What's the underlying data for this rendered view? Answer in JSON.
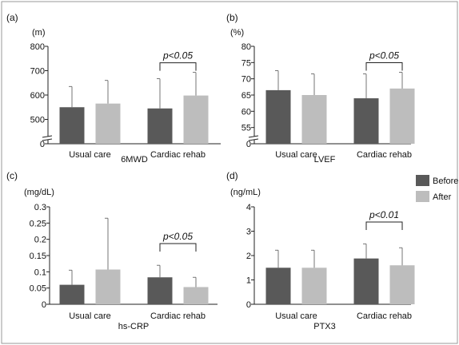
{
  "colors": {
    "before": "#595959",
    "after": "#bdbdbd"
  },
  "legend": {
    "placement": "right",
    "entries": [
      "Before",
      "After"
    ]
  },
  "chart_data": [
    {
      "panel": "(a)",
      "type": "bar",
      "unit": "(m)",
      "xlabel": "6MWD",
      "ylabel": "",
      "categories": [
        "Usual care",
        "Cardiac rehab"
      ],
      "series": [
        {
          "name": "Before",
          "values": [
            550,
            545
          ],
          "error": [
            85,
            122
          ]
        },
        {
          "name": "After",
          "values": [
            565,
            598
          ],
          "error": [
            95,
            95
          ]
        }
      ],
      "ylim": [
        400,
        800
      ],
      "yticks": [
        "0",
        "500",
        "600",
        "700",
        "800"
      ],
      "tickvals": [
        400,
        500,
        600,
        700,
        800
      ],
      "axis_break": true,
      "significance": "p<0.05"
    },
    {
      "panel": "(b)",
      "type": "bar",
      "unit": "(%)",
      "xlabel": "LVEF",
      "ylabel": "",
      "categories": [
        "Usual care",
        "Cardiac rehab"
      ],
      "series": [
        {
          "name": "Before",
          "values": [
            66.5,
            64
          ],
          "error": [
            6,
            7.5
          ]
        },
        {
          "name": "After",
          "values": [
            65,
            67
          ],
          "error": [
            6.5,
            5
          ]
        }
      ],
      "ylim": [
        50,
        80
      ],
      "yticks": [
        "0",
        "55",
        "60",
        "65",
        "70",
        "75",
        "80"
      ],
      "tickvals": [
        50,
        55,
        60,
        65,
        70,
        75,
        80
      ],
      "axis_break": true,
      "significance": "p<0.05"
    },
    {
      "panel": "(c)",
      "type": "bar",
      "unit": "(mg/dL)",
      "xlabel": "hs-CRP",
      "ylabel": "",
      "categories": [
        "Usual care",
        "Cardiac rehab"
      ],
      "series": [
        {
          "name": "Before",
          "values": [
            0.06,
            0.083
          ],
          "error": [
            0.045,
            0.037
          ]
        },
        {
          "name": "After",
          "values": [
            0.107,
            0.053
          ],
          "error": [
            0.158,
            0.03
          ]
        }
      ],
      "ylim": [
        0,
        0.3
      ],
      "yticks": [
        "0",
        "0.05",
        "0.1",
        "0.15",
        "0.2",
        "0.25",
        "0.3"
      ],
      "tickvals": [
        0,
        0.05,
        0.1,
        0.15,
        0.2,
        0.25,
        0.3
      ],
      "axis_break": false,
      "significance": "p<0.05"
    },
    {
      "panel": "(d)",
      "type": "bar",
      "unit": "(ng/mL)",
      "xlabel": "PTX3",
      "ylabel": "",
      "categories": [
        "Usual care",
        "Cardiac rehab"
      ],
      "series": [
        {
          "name": "Before",
          "values": [
            1.5,
            1.88
          ],
          "error": [
            0.72,
            0.6
          ]
        },
        {
          "name": "After",
          "values": [
            1.5,
            1.6
          ],
          "error": [
            0.72,
            0.72
          ]
        }
      ],
      "ylim": [
        0,
        4
      ],
      "yticks": [
        "0",
        "1",
        "2",
        "3",
        "4"
      ],
      "tickvals": [
        0,
        1,
        2,
        3,
        4
      ],
      "axis_break": false,
      "significance": "p<0.01"
    }
  ]
}
